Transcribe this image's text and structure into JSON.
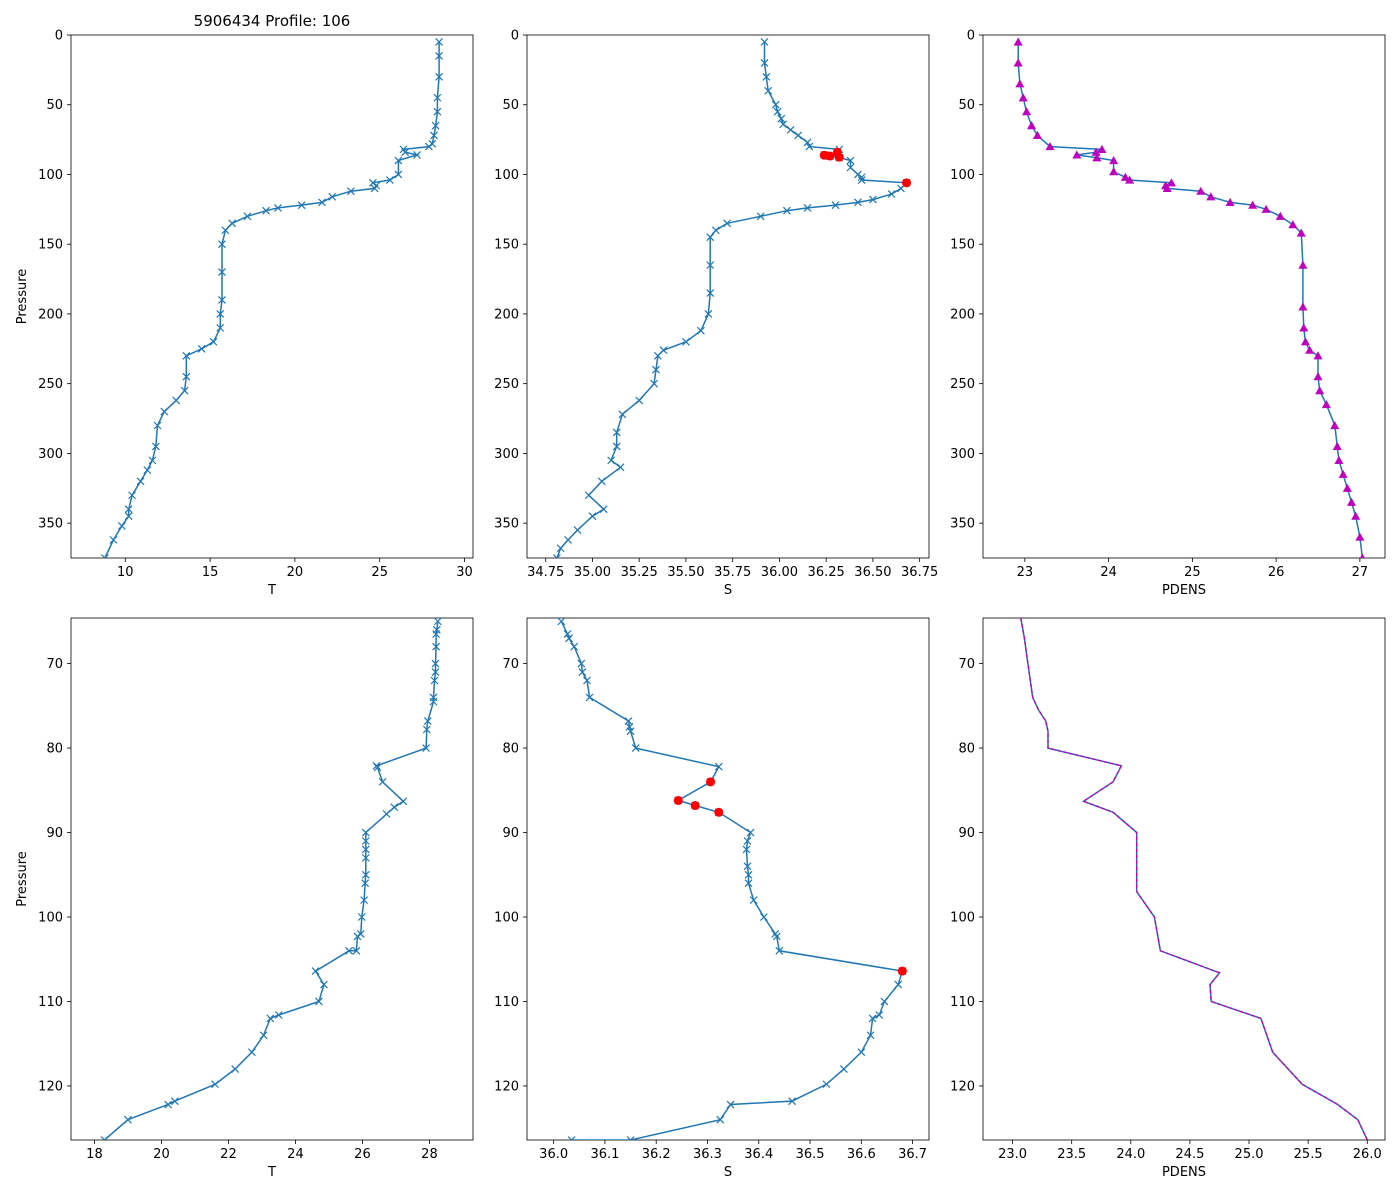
{
  "figure_title": "5906434 Profile: 106",
  "colors": {
    "line": "#1f77b4",
    "flag": "#ff0000",
    "density": "#bf00bf"
  },
  "chart_data": [
    {
      "id": "T-full",
      "type": "line",
      "marker": "x",
      "xlabel": "T",
      "ylabel": "Pressure",
      "title": "5906434 Profile: 106",
      "xlim": [
        6.8,
        30.5
      ],
      "ylim": [
        375,
        0
      ],
      "xticks": [
        10,
        15,
        20,
        25,
        30
      ],
      "yticks": [
        0,
        50,
        100,
        150,
        200,
        250,
        300,
        350
      ],
      "series": [
        {
          "name": "T",
          "x": [
            28.5,
            28.5,
            28.5,
            28.4,
            28.4,
            28.3,
            28.2,
            28.1,
            27.9,
            26.4,
            26.5,
            27.2,
            26.1,
            26.1,
            25.6,
            24.6,
            24.8,
            24.7,
            23.3,
            22.2,
            21.6,
            20.4,
            19.0,
            18.3,
            17.2,
            16.3,
            15.9,
            15.7,
            15.7,
            15.7,
            15.6,
            15.6,
            15.2,
            14.5,
            13.6,
            13.6,
            13.5,
            13.0,
            12.3,
            11.9,
            11.8,
            11.6,
            11.3,
            10.9,
            10.4,
            10.2,
            10.2,
            9.8,
            9.3,
            8.8
          ],
          "y": [
            5,
            15,
            30,
            45,
            55,
            65,
            72,
            78,
            80,
            82,
            84,
            86,
            90,
            100,
            104,
            106,
            108,
            110,
            112,
            116,
            120,
            122,
            124,
            126,
            130,
            135,
            140,
            150,
            170,
            190,
            200,
            210,
            220,
            225,
            230,
            245,
            255,
            262,
            270,
            280,
            295,
            305,
            312,
            320,
            330,
            340,
            345,
            352,
            362,
            375
          ]
        }
      ],
      "flags": [],
      "triangles": false
    },
    {
      "id": "S-full",
      "type": "line",
      "marker": "x",
      "xlabel": "S",
      "ylabel": "",
      "title": "",
      "xlim": [
        34.65,
        36.8
      ],
      "ylim": [
        375,
        0
      ],
      "xticks": [
        34.75,
        35.0,
        35.25,
        35.5,
        35.75,
        36.0,
        36.25,
        36.5,
        36.75
      ],
      "xticklabels": [
        "34.75",
        "35.00",
        "35.25",
        "35.50",
        "35.75",
        "36.00",
        "36.25",
        "36.50",
        "36.75"
      ],
      "yticks": [
        0,
        50,
        100,
        150,
        200,
        250,
        300,
        350
      ],
      "series": [
        {
          "name": "S",
          "x": [
            35.92,
            35.92,
            35.93,
            35.94,
            35.98,
            35.99,
            36.01,
            36.02,
            36.06,
            36.1,
            36.15,
            36.16,
            36.32,
            36.31,
            36.24,
            36.27,
            36.32,
            36.38,
            36.38,
            36.42,
            36.44,
            36.44,
            36.68,
            36.65,
            36.6,
            36.5,
            36.42,
            36.3,
            36.15,
            36.04,
            35.9,
            35.72,
            35.66,
            35.63,
            35.63,
            35.63,
            35.62,
            35.58,
            35.5,
            35.38,
            35.35,
            35.34,
            35.33,
            35.25,
            35.16,
            35.13,
            35.13,
            35.1,
            35.15,
            35.05,
            34.98,
            35.06,
            35.0,
            34.92,
            34.87,
            34.83,
            34.81
          ],
          "y": [
            5,
            20,
            30,
            40,
            50,
            55,
            60,
            64,
            68,
            72,
            77,
            80,
            82,
            84,
            86,
            87,
            88,
            90,
            95,
            100,
            102,
            104,
            106,
            110,
            114,
            118,
            120,
            122,
            124,
            126,
            130,
            135,
            140,
            145,
            165,
            185,
            200,
            212,
            220,
            226,
            230,
            240,
            250,
            262,
            272,
            285,
            295,
            305,
            310,
            320,
            330,
            340,
            345,
            355,
            362,
            368,
            375
          ]
        }
      ],
      "flags": {
        "x": [
          36.68,
          36.32,
          36.31,
          36.24,
          36.27
        ],
        "y": [
          106,
          87.6,
          84,
          86.2,
          86.8
        ]
      },
      "triangles": false
    },
    {
      "id": "PDENS-full",
      "type": "line",
      "marker": "triangle",
      "xlabel": "PDENS",
      "ylabel": "",
      "title": "",
      "xlim": [
        22.5,
        27.3
      ],
      "ylim": [
        375,
        0
      ],
      "xticks": [
        23,
        24,
        25,
        26,
        27
      ],
      "yticks": [
        0,
        50,
        100,
        150,
        200,
        250,
        300,
        350
      ],
      "series": [
        {
          "name": "PDENS",
          "x": [
            22.92,
            22.92,
            22.94,
            22.98,
            23.02,
            23.08,
            23.15,
            23.3,
            23.92,
            23.85,
            23.62,
            23.86,
            24.06,
            24.06,
            24.2,
            24.25,
            24.75,
            24.68,
            24.7,
            25.1,
            25.22,
            25.45,
            25.72,
            25.88,
            26.05,
            26.2,
            26.3,
            26.32,
            26.32,
            26.33,
            26.35,
            26.4,
            26.5,
            26.5,
            26.52,
            26.6,
            26.7,
            26.73,
            26.75,
            26.8,
            26.85,
            26.9,
            26.95,
            27.0,
            27.03
          ],
          "y": [
            5,
            20,
            35,
            45,
            55,
            65,
            72,
            80,
            82,
            84,
            86,
            88,
            90,
            98,
            102,
            104,
            106,
            108,
            110,
            112,
            116,
            120,
            122,
            125,
            130,
            136,
            142,
            165,
            195,
            210,
            220,
            226,
            230,
            245,
            255,
            265,
            280,
            295,
            305,
            315,
            325,
            335,
            345,
            360,
            375
          ]
        }
      ],
      "flags": [],
      "triangles": true
    },
    {
      "id": "T-zoom",
      "type": "line",
      "marker": "x",
      "xlabel": "T",
      "ylabel": "Pressure",
      "title": "",
      "xlim": [
        17.3,
        29.3
      ],
      "ylim": [
        126.4,
        64.6
      ],
      "xticks": [
        18,
        20,
        22,
        24,
        26,
        28
      ],
      "yticks": [
        70,
        80,
        90,
        100,
        110,
        120
      ],
      "series": [
        {
          "name": "T",
          "x": [
            28.25,
            28.22,
            28.2,
            28.2,
            28.18,
            28.18,
            28.15,
            28.12,
            28.12,
            27.95,
            27.92,
            27.9,
            26.42,
            26.45,
            26.6,
            27.22,
            26.95,
            26.72,
            26.1,
            26.1,
            26.1,
            26.1,
            26.1,
            26.08,
            26.05,
            25.98,
            25.95,
            25.85,
            25.82,
            25.6,
            24.6,
            24.85,
            24.7,
            23.5,
            23.25,
            23.05,
            22.7,
            22.2,
            21.6,
            20.4,
            20.2,
            19.0,
            18.3
          ],
          "y": [
            65,
            66,
            66.5,
            68,
            70,
            71,
            72,
            74,
            74.5,
            76.8,
            77.8,
            80,
            82.1,
            82.3,
            84,
            86.3,
            87,
            87.8,
            90,
            91,
            92,
            93,
            95,
            96,
            98,
            100,
            102,
            102.3,
            104,
            104,
            106.4,
            108,
            110,
            111.6,
            112,
            114,
            116,
            118,
            119.8,
            121.8,
            122.2,
            124,
            126.4
          ]
        }
      ],
      "flags": [],
      "triangles": false
    },
    {
      "id": "S-zoom",
      "type": "line",
      "marker": "x",
      "xlabel": "S",
      "ylabel": "",
      "title": "",
      "xlim": [
        35.948,
        36.732
      ],
      "ylim": [
        126.4,
        64.6
      ],
      "xticks": [
        36.0,
        36.1,
        36.2,
        36.3,
        36.4,
        36.5,
        36.6,
        36.7
      ],
      "xticklabels": [
        "36.0",
        "36.1",
        "36.2",
        "36.3",
        "36.4",
        "36.5",
        "36.6",
        "36.7"
      ],
      "yticks": [
        70,
        80,
        90,
        100,
        110,
        120
      ],
      "series": [
        {
          "name": "S",
          "x": [
            36.015,
            36.027,
            36.03,
            36.04,
            36.054,
            36.056,
            36.065,
            36.07,
            36.146,
            36.148,
            36.15,
            36.16,
            36.322,
            36.306,
            36.243,
            36.276,
            36.322,
            36.384,
            36.378,
            36.376,
            36.378,
            36.38,
            36.38,
            36.39,
            36.41,
            36.432,
            36.435,
            36.44,
            36.68,
            36.672,
            36.645,
            36.635,
            36.622,
            36.618,
            36.6,
            36.566,
            36.532,
            36.465,
            36.345,
            36.325,
            36.15,
            36.035
          ],
          "y": [
            65,
            66.5,
            67,
            68,
            70,
            71,
            72,
            74,
            76.8,
            77.5,
            78,
            80,
            82.2,
            84,
            86.2,
            86.8,
            87.6,
            90,
            91,
            92,
            94,
            95,
            96,
            98,
            100,
            102,
            102.3,
            104,
            106.4,
            108,
            110,
            111.6,
            112,
            114,
            116,
            118,
            119.8,
            121.8,
            122.2,
            124,
            126.4,
            126.4
          ]
        }
      ],
      "flags": {
        "x": [
          36.306,
          36.243,
          36.276,
          36.322,
          36.68
        ],
        "y": [
          84,
          86.2,
          86.8,
          87.6,
          106.4
        ]
      },
      "triangles": false
    },
    {
      "id": "PDENS-zoom",
      "type": "line",
      "marker": "dashed",
      "xlabel": "PDENS",
      "ylabel": "",
      "title": "",
      "xlim": [
        22.75,
        26.15
      ],
      "ylim": [
        126.4,
        64.6
      ],
      "xticks": [
        23.0,
        23.5,
        24.0,
        24.5,
        25.0,
        25.5,
        26.0
      ],
      "xticklabels": [
        "23.0",
        "23.5",
        "24.0",
        "24.5",
        "25.0",
        "25.5",
        "26.0"
      ],
      "yticks": [
        70,
        80,
        90,
        100,
        110,
        120
      ],
      "series": [
        {
          "name": "PDENS",
          "x": [
            23.07,
            23.1,
            23.13,
            23.17,
            23.22,
            23.28,
            23.3,
            23.3,
            23.92,
            23.85,
            23.6,
            23.85,
            24.05,
            24.05,
            24.05,
            24.1,
            24.2,
            24.25,
            24.75,
            24.67,
            24.68,
            25.1,
            25.2,
            25.45,
            25.75,
            25.92,
            26.0
          ],
          "y": [
            64.6,
            67,
            70,
            74,
            75.5,
            76.8,
            78,
            80,
            82.1,
            84,
            86.3,
            87.6,
            90,
            95,
            97,
            98,
            100,
            104,
            106.6,
            108,
            110,
            112,
            116,
            119.8,
            122.2,
            124,
            126.4
          ]
        }
      ],
      "flags": [],
      "triangles": false
    }
  ]
}
